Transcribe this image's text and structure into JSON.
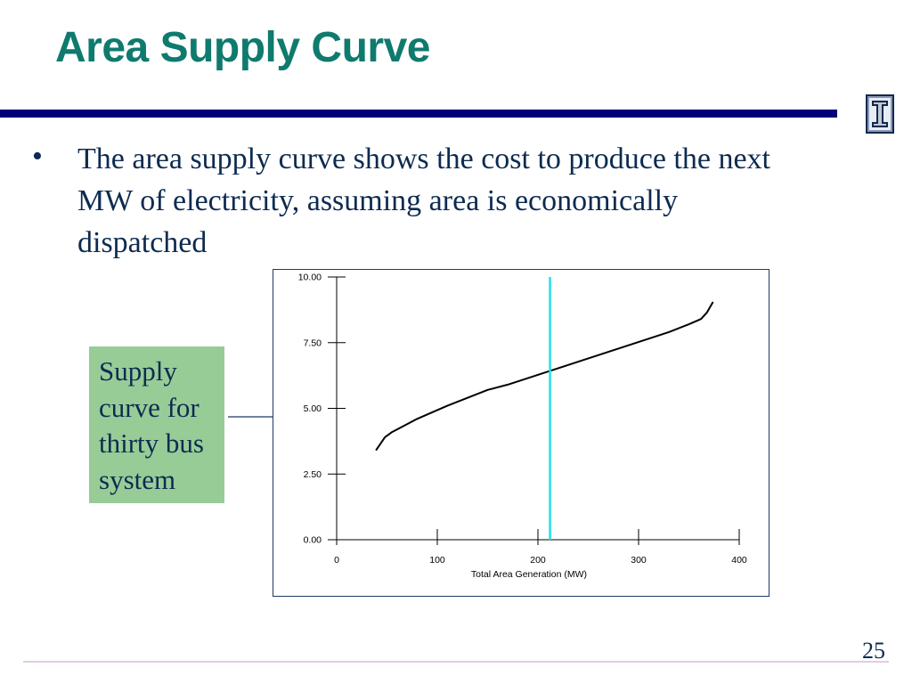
{
  "slide": {
    "title": "Area Supply Curve",
    "bullet": "The area supply curve shows the cost to produce the next MW of electricity, assuming area is economically dispatched",
    "callout": "Supply curve for thirty bus system",
    "page_number": "25"
  },
  "colors": {
    "title": "#0f7a6e",
    "rule": "#00007a",
    "text": "#0d2b50",
    "callout_bg": "#97cc97",
    "marker_line": "#22e0e6"
  },
  "icons": {
    "logo": "university-of-illinois-block-i-icon",
    "arrow": "arrow-right-icon"
  },
  "chart_data": {
    "type": "line",
    "xlabel": "Total Area Generation (MW)",
    "ylabel": "",
    "xlim": [
      0,
      400
    ],
    "ylim": [
      0,
      10
    ],
    "xticks": [
      0,
      100,
      200,
      300,
      400
    ],
    "yticks": [
      "0.00",
      "2.50",
      "5.00",
      "7.50",
      "10.00"
    ],
    "grid": false,
    "series": [
      {
        "x": [
          39,
          48,
          55,
          65,
          80,
          95,
          110,
          130,
          150,
          170,
          190,
          210,
          230,
          250,
          270,
          290,
          310,
          330,
          350,
          362,
          368,
          374
        ],
        "y": [
          3.4,
          3.9,
          4.1,
          4.3,
          4.6,
          4.85,
          5.1,
          5.4,
          5.7,
          5.9,
          6.15,
          6.4,
          6.65,
          6.9,
          7.15,
          7.4,
          7.65,
          7.9,
          8.2,
          8.4,
          8.65,
          9.05
        ]
      }
    ],
    "marker_line_x": 212
  }
}
